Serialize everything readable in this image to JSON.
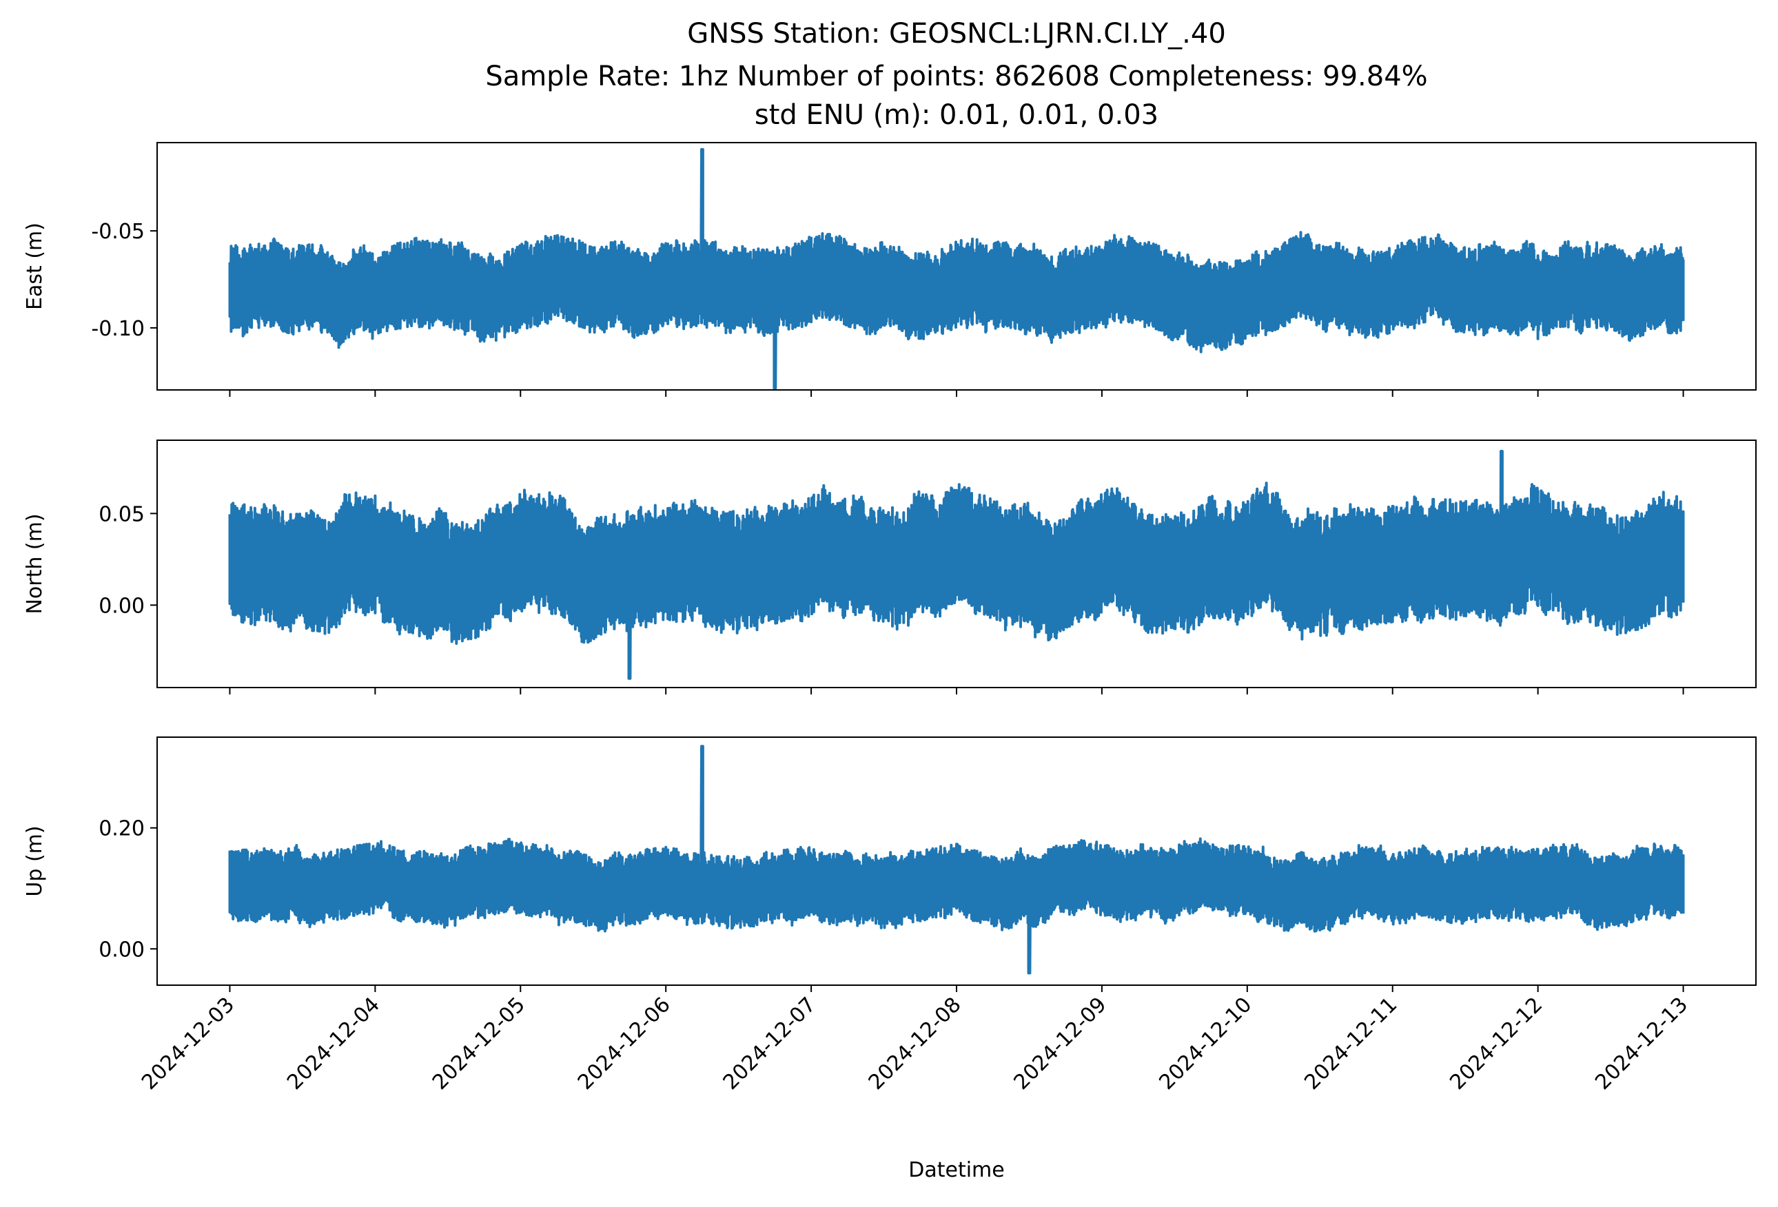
{
  "chart_data": {
    "type": "line",
    "title_lines": [
      "GNSS Station: GEOSNCL:LJRN.CI.LY_.40",
      "Sample Rate: 1hz   Number of points: 862608    Completeness:  99.84%",
      "std ENU (m):  0.01, 0.01, 0.03"
    ],
    "xlabel": "Datetime",
    "x_ticks": [
      "2024-12-03",
      "2024-12-04",
      "2024-12-05",
      "2024-12-06",
      "2024-12-07",
      "2024-12-08",
      "2024-12-09",
      "2024-12-10",
      "2024-12-11",
      "2024-12-12",
      "2024-12-13"
    ],
    "xlim": [
      "2024-12-02 12:00",
      "2024-12-13 12:00"
    ],
    "data_range": [
      "2024-12-03",
      "2024-12-13"
    ],
    "line_color": "#1f77b4",
    "grid": false,
    "legend": false,
    "panels": [
      {
        "ylabel": "East (m)",
        "ylim": [
          -0.132,
          -0.0045
        ],
        "y_ticks": [
          -0.05,
          -0.1
        ],
        "y_tick_labels": [
          "-0.05",
          "-0.10"
        ],
        "mean": -0.08,
        "band": 0.017,
        "std": 0.01,
        "max": -0.008,
        "max_at": "2024-12-06 06:00",
        "min": -0.131,
        "min_at": "2024-12-06 18:00"
      },
      {
        "ylabel": "North (m)",
        "ylim": [
          -0.045,
          0.09
        ],
        "y_ticks": [
          0.05,
          0.0
        ],
        "y_tick_labels": [
          "0.05",
          "0.00"
        ],
        "mean": 0.022,
        "band": 0.025,
        "std": 0.01,
        "max": 0.084,
        "max_at": "2024-12-11 18:00",
        "min": -0.04,
        "min_at": "2024-12-05 18:00"
      },
      {
        "ylabel": "Up (m)",
        "ylim": [
          -0.06,
          0.35
        ],
        "y_ticks": [
          0.2,
          0.0
        ],
        "y_tick_labels": [
          "0.20",
          "0.00"
        ],
        "mean": 0.105,
        "band": 0.045,
        "std": 0.03,
        "max": 0.335,
        "max_at": "2024-12-06 06:00",
        "min": -0.04,
        "min_at": "2024-12-08 12:00"
      }
    ]
  }
}
